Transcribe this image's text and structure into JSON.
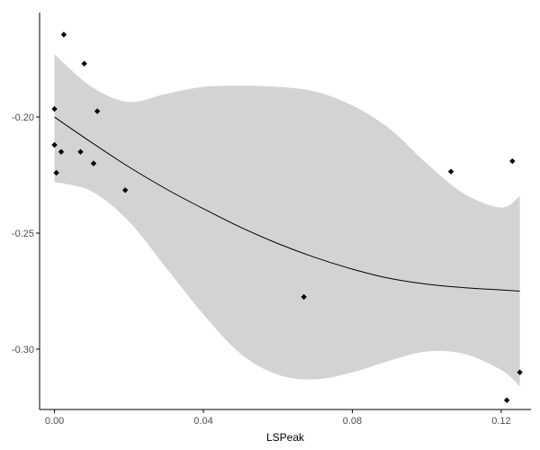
{
  "chart_data": {
    "type": "scatter",
    "title": "",
    "xlabel": "LSPeak",
    "ylabel": "",
    "xlim": [
      -0.004,
      0.128
    ],
    "ylim": [
      -0.326,
      -0.155
    ],
    "grid": false,
    "legend": "none",
    "x_ticks": [
      {
        "value": 0.0,
        "label": "0.00"
      },
      {
        "value": 0.04,
        "label": "0.04"
      },
      {
        "value": 0.08,
        "label": "0.08"
      },
      {
        "value": 0.12,
        "label": "0.12"
      }
    ],
    "y_ticks": [
      {
        "value": -0.2,
        "label": "-0.20"
      },
      {
        "value": -0.25,
        "label": "-0.25"
      },
      {
        "value": -0.3,
        "label": "-0.30"
      }
    ],
    "points": [
      {
        "x": 0.0,
        "y": -0.1965
      },
      {
        "x": 0.0,
        "y": -0.212
      },
      {
        "x": 0.0005,
        "y": -0.224
      },
      {
        "x": 0.0018,
        "y": -0.215
      },
      {
        "x": 0.0025,
        "y": -0.1645
      },
      {
        "x": 0.007,
        "y": -0.215
      },
      {
        "x": 0.008,
        "y": -0.177
      },
      {
        "x": 0.0105,
        "y": -0.22
      },
      {
        "x": 0.0115,
        "y": -0.1975
      },
      {
        "x": 0.019,
        "y": -0.2315
      },
      {
        "x": 0.067,
        "y": -0.2775
      },
      {
        "x": 0.1065,
        "y": -0.2235
      },
      {
        "x": 0.1215,
        "y": -0.322
      },
      {
        "x": 0.123,
        "y": -0.219
      },
      {
        "x": 0.125,
        "y": -0.31
      }
    ],
    "smooth": {
      "x": [
        0.0,
        0.01,
        0.02,
        0.03,
        0.04,
        0.05,
        0.06,
        0.07,
        0.08,
        0.09,
        0.1,
        0.11,
        0.12,
        0.125
      ],
      "y": [
        -0.2,
        -0.211,
        -0.2215,
        -0.231,
        -0.2395,
        -0.2475,
        -0.2545,
        -0.2605,
        -0.2655,
        -0.2695,
        -0.272,
        -0.2735,
        -0.2745,
        -0.275
      ],
      "lower": [
        -0.228,
        -0.232,
        -0.245,
        -0.265,
        -0.285,
        -0.302,
        -0.311,
        -0.313,
        -0.31,
        -0.305,
        -0.301,
        -0.302,
        -0.309,
        -0.316
      ],
      "upper": [
        -0.173,
        -0.187,
        -0.1935,
        -0.19,
        -0.187,
        -0.1865,
        -0.187,
        -0.189,
        -0.195,
        -0.205,
        -0.22,
        -0.233,
        -0.239,
        -0.234
      ]
    },
    "colors": {
      "points": "#000000",
      "line": "#000000",
      "ribbon": "#d3d3d3",
      "axis": "#000000",
      "tick_label": "#4d4d4d"
    }
  }
}
